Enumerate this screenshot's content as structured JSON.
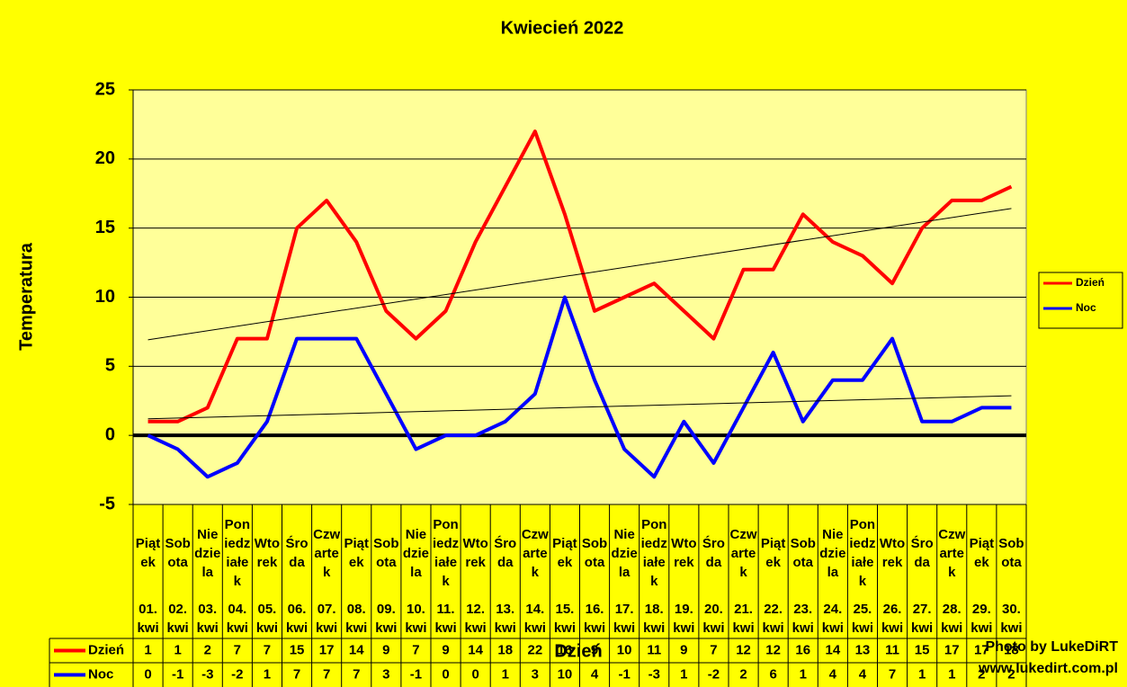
{
  "chart_data": {
    "type": "line",
    "title": "Kwiecień 2022",
    "y_label": "Temperatura",
    "x_label": "Dzień",
    "credit": [
      "Photo by LukeDiRT",
      "www.lukedirt.com.pl"
    ],
    "weekdays": [
      "Piątek",
      "Sobota",
      "Niedziela",
      "Poniedziałek",
      "Wtorek",
      "Środa",
      "Czwartek",
      "Piątek",
      "Sobota",
      "Niedziela",
      "Poniedziałek",
      "Wtorek",
      "Środa",
      "Czwartek",
      "Piątek",
      "Sobota",
      "Niedziela",
      "Poniedziałek",
      "Wtorek",
      "Środa",
      "Czwartek",
      "Piątek",
      "Sobota",
      "Niedziela",
      "Poniedziałek",
      "Wtorek",
      "Środa",
      "Czwartek",
      "Piątek",
      "Sobota"
    ],
    "categories": [
      "01. kwi",
      "02. kwi",
      "03. kwi",
      "04. kwi",
      "05. kwi",
      "06. kwi",
      "07. kwi",
      "08. kwi",
      "09. kwi",
      "10. kwi",
      "11. kwi",
      "12. kwi",
      "13. kwi",
      "14. kwi",
      "15. kwi",
      "16. kwi",
      "17. kwi",
      "18. kwi",
      "19. kwi",
      "20. kwi",
      "21. kwi",
      "22. kwi",
      "23. kwi",
      "24. kwi",
      "25. kwi",
      "26. kwi",
      "27. kwi",
      "28. kwi",
      "29. kwi",
      "30. kwi"
    ],
    "series": [
      {
        "name": "Dzień",
        "color": "#ff0000",
        "values": [
          1,
          1,
          2,
          7,
          7,
          15,
          17,
          14,
          9,
          7,
          9,
          14,
          18,
          22,
          16,
          9,
          10,
          11,
          9,
          7,
          12,
          12,
          16,
          14,
          13,
          11,
          15,
          17,
          17,
          18
        ]
      },
      {
        "name": "Noc",
        "color": "#0000ff",
        "values": [
          0,
          -1,
          -3,
          -2,
          1,
          7,
          7,
          7,
          3,
          -1,
          0,
          0,
          1,
          3,
          10,
          4,
          -1,
          -3,
          1,
          -2,
          2,
          6,
          1,
          4,
          4,
          7,
          1,
          1,
          2,
          2
        ]
      }
    ],
    "ylim": [
      -5,
      25
    ],
    "yticks": [
      -5,
      0,
      5,
      10,
      15,
      20,
      25
    ],
    "grid": true,
    "trendline": true,
    "legend": "right",
    "data_table": true
  }
}
